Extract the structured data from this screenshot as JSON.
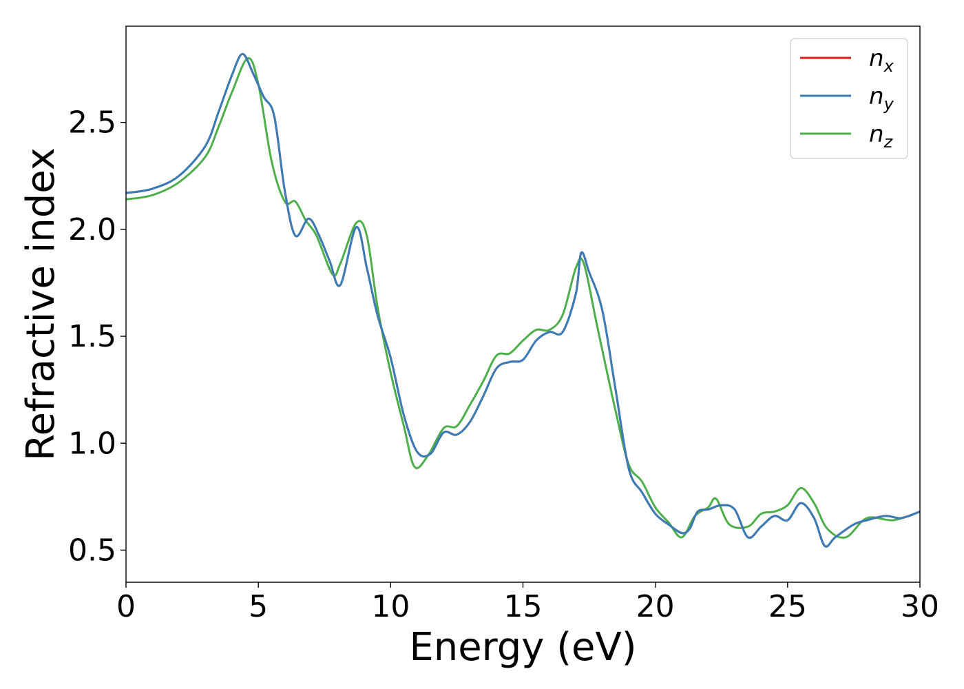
{
  "chart_data": {
    "type": "line",
    "xlabel": "Energy (eV)",
    "ylabel": "Refractive index",
    "xlim": [
      0,
      30
    ],
    "ylim": [
      0.35,
      2.95
    ],
    "xticks": [
      0,
      5,
      10,
      15,
      20,
      25,
      30
    ],
    "xtick_labels": [
      "0",
      "5",
      "10",
      "15",
      "20",
      "25",
      "30"
    ],
    "yticks": [
      0.5,
      1.0,
      1.5,
      2.0,
      2.5
    ],
    "ytick_labels": [
      "0.5",
      "1.0",
      "1.5",
      "2.0",
      "2.5"
    ],
    "grid": false,
    "legend_position": "top-right",
    "series": [
      {
        "name": "n_x",
        "label_base": "n",
        "label_sub": "x",
        "color": "#e41a1c",
        "x": [
          0,
          1,
          2,
          3,
          3.5,
          4,
          4.4,
          4.8,
          5.2,
          5.6,
          6.0,
          6.4,
          6.9,
          7.3,
          7.7,
          8.1,
          8.7,
          9.1,
          9.5,
          10,
          10.5,
          11,
          11.5,
          12,
          12.5,
          13,
          13.5,
          14,
          14.5,
          15,
          15.5,
          16,
          16.5,
          17,
          17.2,
          17.5,
          18,
          18.5,
          19,
          19.5,
          20,
          20.5,
          21,
          21.3,
          21.6,
          22,
          22.5,
          23,
          23.5,
          24,
          24.5,
          25,
          25.5,
          26,
          26.4,
          26.8,
          27.5,
          28,
          28.7,
          29.3,
          30
        ],
        "y": [
          2.17,
          2.19,
          2.25,
          2.39,
          2.55,
          2.72,
          2.82,
          2.73,
          2.62,
          2.53,
          2.18,
          1.97,
          2.05,
          1.97,
          1.85,
          1.74,
          2.01,
          1.82,
          1.6,
          1.4,
          1.13,
          0.96,
          0.95,
          1.05,
          1.04,
          1.1,
          1.22,
          1.35,
          1.38,
          1.39,
          1.48,
          1.52,
          1.52,
          1.7,
          1.89,
          1.8,
          1.62,
          1.25,
          0.88,
          0.77,
          0.67,
          0.62,
          0.58,
          0.6,
          0.68,
          0.69,
          0.71,
          0.69,
          0.56,
          0.61,
          0.66,
          0.64,
          0.72,
          0.65,
          0.52,
          0.56,
          0.62,
          0.64,
          0.66,
          0.65,
          0.68
        ]
      },
      {
        "name": "n_y",
        "label_base": "n",
        "label_sub": "y",
        "color": "#377eb8",
        "x": [
          0,
          1,
          2,
          3,
          3.5,
          4,
          4.4,
          4.8,
          5.2,
          5.6,
          6.0,
          6.4,
          6.9,
          7.3,
          7.7,
          8.1,
          8.7,
          9.1,
          9.5,
          10,
          10.5,
          11,
          11.5,
          12,
          12.5,
          13,
          13.5,
          14,
          14.5,
          15,
          15.5,
          16,
          16.5,
          17,
          17.2,
          17.5,
          18,
          18.5,
          19,
          19.5,
          20,
          20.5,
          21,
          21.3,
          21.6,
          22,
          22.5,
          23,
          23.5,
          24,
          24.5,
          25,
          25.5,
          26,
          26.4,
          26.8,
          27.5,
          28,
          28.7,
          29.3,
          30
        ],
        "y": [
          2.17,
          2.19,
          2.25,
          2.39,
          2.55,
          2.72,
          2.82,
          2.73,
          2.62,
          2.53,
          2.18,
          1.97,
          2.05,
          1.97,
          1.85,
          1.74,
          2.01,
          1.82,
          1.6,
          1.4,
          1.13,
          0.96,
          0.95,
          1.05,
          1.04,
          1.1,
          1.22,
          1.35,
          1.38,
          1.39,
          1.48,
          1.52,
          1.52,
          1.7,
          1.89,
          1.8,
          1.62,
          1.25,
          0.88,
          0.77,
          0.67,
          0.62,
          0.58,
          0.6,
          0.68,
          0.69,
          0.71,
          0.69,
          0.56,
          0.61,
          0.66,
          0.64,
          0.72,
          0.65,
          0.52,
          0.56,
          0.62,
          0.64,
          0.66,
          0.65,
          0.68
        ]
      },
      {
        "name": "n_z",
        "label_base": "n",
        "label_sub": "z",
        "color": "#4daf4a",
        "x": [
          0,
          1,
          2,
          3,
          3.5,
          4,
          4.6,
          5.0,
          5.5,
          6.0,
          6.4,
          6.8,
          7.2,
          7.8,
          8.1,
          8.7,
          9.1,
          9.5,
          10,
          10.5,
          10.9,
          11.4,
          12,
          12.5,
          13,
          13.5,
          14,
          14.5,
          15,
          15.5,
          16,
          16.5,
          17,
          17.3,
          17.8,
          18.5,
          19,
          19.5,
          20,
          20.5,
          21,
          21.5,
          22,
          22.3,
          22.8,
          23.5,
          24,
          24.5,
          25,
          25.5,
          26,
          26.5,
          27.2,
          28,
          29,
          30
        ],
        "y": [
          2.14,
          2.16,
          2.22,
          2.34,
          2.48,
          2.64,
          2.8,
          2.68,
          2.32,
          2.13,
          2.13,
          2.04,
          1.97,
          1.79,
          1.84,
          2.03,
          1.97,
          1.64,
          1.33,
          1.08,
          0.89,
          0.94,
          1.07,
          1.08,
          1.18,
          1.29,
          1.41,
          1.42,
          1.48,
          1.53,
          1.53,
          1.6,
          1.82,
          1.84,
          1.55,
          1.15,
          0.9,
          0.82,
          0.7,
          0.63,
          0.56,
          0.66,
          0.7,
          0.74,
          0.62,
          0.61,
          0.67,
          0.68,
          0.71,
          0.79,
          0.72,
          0.6,
          0.56,
          0.65,
          0.64,
          0.68
        ]
      }
    ]
  }
}
